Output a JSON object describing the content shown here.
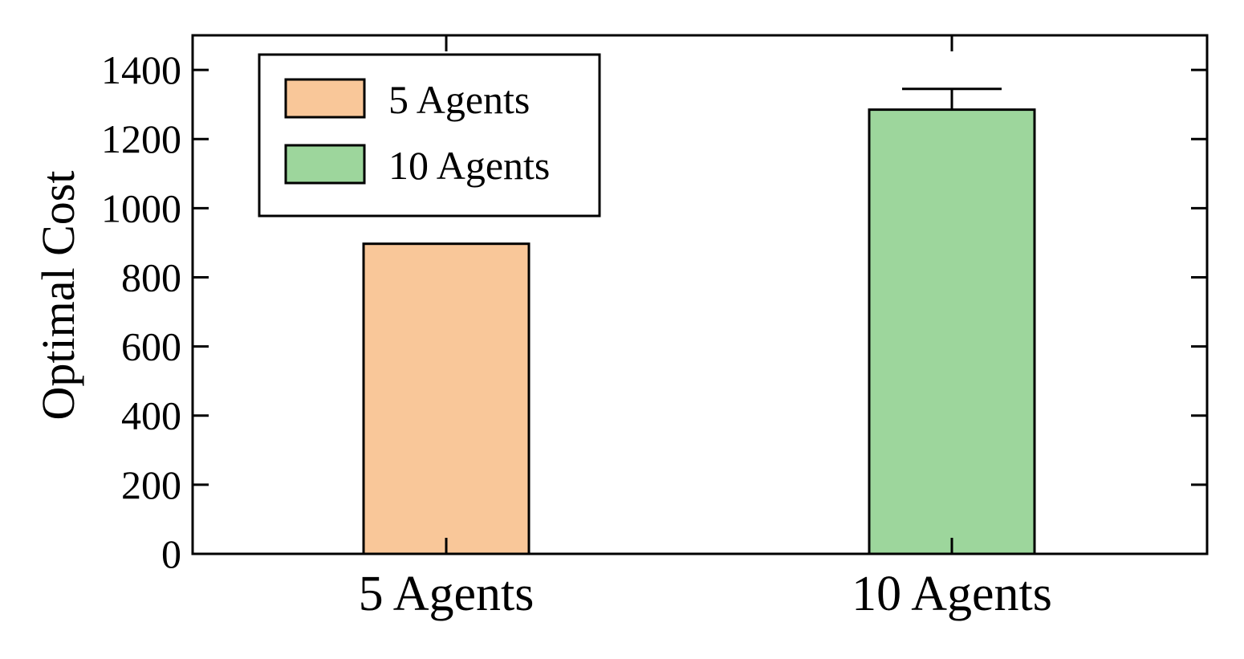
{
  "chart_data": {
    "type": "bar",
    "categories": [
      "5 Agents",
      "10 Agents"
    ],
    "values": [
      897,
      1285
    ],
    "error_upper": [
      0,
      60
    ],
    "colors": [
      "#f9c799",
      "#9dd69c"
    ],
    "xlabel": "",
    "ylabel": "Optimal Cost",
    "ylim": [
      0,
      1500
    ],
    "yticks": [
      0,
      200,
      400,
      600,
      800,
      1000,
      1200,
      1400
    ],
    "grid": false,
    "legend": {
      "placement": "top-left",
      "entries": [
        {
          "label": "5 Agents",
          "color": "#f9c799"
        },
        {
          "label": "10 Agents",
          "color": "#9dd69c"
        }
      ]
    }
  }
}
